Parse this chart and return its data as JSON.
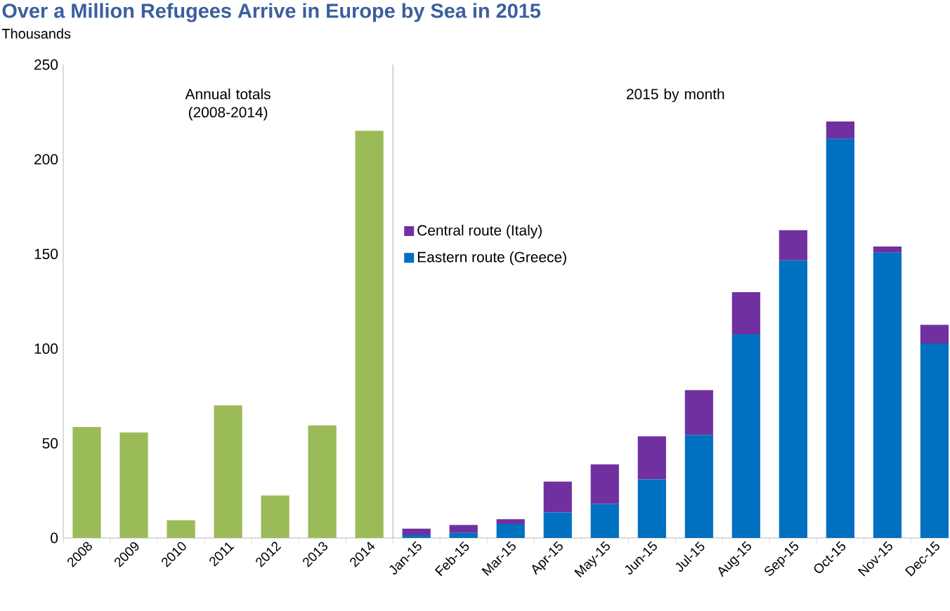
{
  "chart_data": {
    "type": "bar",
    "title": "Over a Million Refugees Arrive in Europe by Sea in 2015",
    "ylabel": "Thousands",
    "categories": [
      "2008",
      "2009",
      "2010",
      "2011",
      "2012",
      "2013",
      "2014",
      "Jan-15",
      "Feb-15",
      "Mar-15",
      "Apr-15",
      "May-15",
      "Jun-15",
      "Jul-15",
      "Aug-15",
      "Sep-15",
      "Oct-15",
      "Nov-15",
      "Dec-15"
    ],
    "series": [
      {
        "color": "#9bbb59",
        "values": [
          58.6,
          55.7,
          9.4,
          70,
          22.4,
          59.4,
          215,
          null,
          null,
          null,
          null,
          null,
          null,
          null,
          null,
          null,
          null,
          null,
          null
        ]
      },
      {
        "name": "Eastern route (Greece)",
        "color": "#0070c0",
        "values": [
          null,
          null,
          null,
          null,
          null,
          null,
          null,
          1.5,
          2.7,
          7.4,
          13.5,
          18,
          31,
          54.4,
          107.6,
          146.6,
          210.8,
          150.7,
          102.7
        ]
      },
      {
        "name": "Central route (Italy)",
        "color": "#7030a0",
        "values": [
          null,
          null,
          null,
          null,
          null,
          null,
          null,
          3.4,
          4.2,
          2.5,
          16.3,
          20.9,
          22.7,
          23.7,
          22.2,
          16,
          9.2,
          3.2,
          9.9
        ]
      }
    ],
    "stacked": true,
    "ylim": [
      0,
      250
    ],
    "yticks": [
      0,
      50,
      100,
      150,
      200,
      250
    ],
    "legend": "center",
    "annotations": [
      "Annual totals (2008-2014)",
      "2015 by month"
    ]
  }
}
